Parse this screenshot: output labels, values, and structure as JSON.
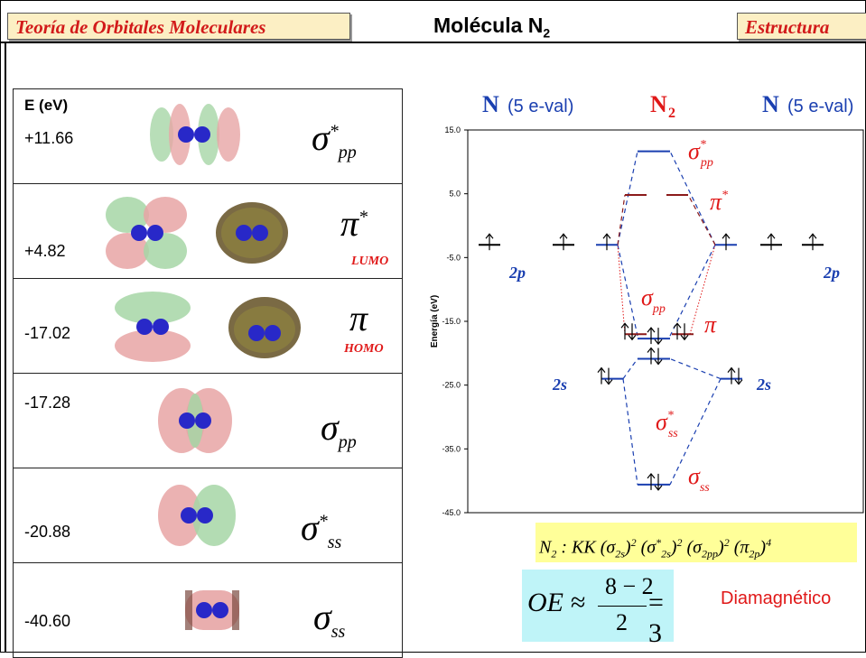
{
  "header": {
    "left_tag": "Teoría de Orbitales Moleculares",
    "right_tag": "Estructura",
    "title": "Molécula N",
    "title_sub": "2"
  },
  "table": {
    "energy_header": "E (eV)",
    "rows": [
      {
        "energy": "+11.66",
        "symbol": "σ",
        "sub": "pp",
        "sup": "*",
        "tag": ""
      },
      {
        "energy": "+4.82",
        "symbol": "π",
        "sub": "",
        "sup": "*",
        "tag": "LUMO"
      },
      {
        "energy": "-17.02",
        "symbol": "π",
        "sub": "",
        "sup": "",
        "tag": "HOMO"
      },
      {
        "energy": "-17.28",
        "symbol": "σ",
        "sub": "pp",
        "sup": "",
        "tag": ""
      },
      {
        "energy": "-20.88",
        "symbol": "σ",
        "sub": "ss",
        "sup": "*",
        "tag": ""
      },
      {
        "energy": "-40.60",
        "symbol": "σ",
        "sub": "ss",
        "sup": "",
        "tag": ""
      }
    ]
  },
  "chart_data": {
    "type": "energy-level diagram",
    "column_headers": {
      "left": {
        "atom": "N",
        "note": "(5 e-val)"
      },
      "center": {
        "atom": "N",
        "sub": "2"
      },
      "right": {
        "atom": "N",
        "note": "(5 e-val)"
      }
    },
    "ylabel": "Energía (eV)",
    "ylim": [
      -45.0,
      15.0
    ],
    "yticks": [
      "15.0",
      "5.0",
      "-5.0",
      "-15.0",
      "-25.0",
      "-35.0",
      "-45.0"
    ],
    "atomic_levels": [
      {
        "side": "left",
        "label": "2p",
        "energy": -3.0,
        "electrons": [
          "up",
          "up",
          "up"
        ]
      },
      {
        "side": "right",
        "label": "2p",
        "energy": -3.0,
        "electrons": [
          "up",
          "up",
          "up"
        ]
      },
      {
        "side": "left",
        "label": "2s",
        "energy": -24.0,
        "electrons": [
          "updown"
        ]
      },
      {
        "side": "right",
        "label": "2s",
        "energy": -24.0,
        "electrons": [
          "updown"
        ]
      }
    ],
    "molecular_levels": [
      {
        "name": "σpp*",
        "energy": 11.66,
        "electrons": []
      },
      {
        "name": "π*",
        "energy": 4.82,
        "electrons": []
      },
      {
        "name": "π",
        "energy": -17.02,
        "electrons": [
          "updown",
          "updown"
        ]
      },
      {
        "name": "σpp",
        "energy": -17.28,
        "electrons": [
          "updown"
        ]
      },
      {
        "name": "σss*",
        "energy": -20.88,
        "electrons": [
          "updown"
        ]
      },
      {
        "name": "σss",
        "energy": -40.6,
        "electrons": [
          "updown"
        ]
      }
    ],
    "level_labels": [
      {
        "text": "σ",
        "sub": "pp",
        "sup": "*"
      },
      {
        "text": "π",
        "sub": "",
        "sup": "*"
      },
      {
        "text": "σ",
        "sub": "pp",
        "sup": ""
      },
      {
        "text": "π",
        "sub": "",
        "sup": ""
      },
      {
        "text": "σ",
        "sub": "ss",
        "sup": "*"
      },
      {
        "text": "σ",
        "sub": "ss",
        "sup": ""
      }
    ],
    "side_labels": [
      "2p",
      "2p",
      "2s",
      "2s"
    ]
  },
  "formula": {
    "prefix": "N",
    "prefix_sub": "2",
    "text": " : KK",
    "terms": [
      {
        "sym": "σ",
        "sub": "2s",
        "sup": "",
        "exp": "2"
      },
      {
        "sym": "σ",
        "sub": "2s",
        "sup": "*",
        "exp": "2"
      },
      {
        "sym": "σ",
        "sub": "2pp",
        "sup": "",
        "exp": "2"
      },
      {
        "sym": "π",
        "sub": "2p",
        "sup": "",
        "exp": "4"
      }
    ]
  },
  "bond_order": {
    "lhs": "OE ≈",
    "numerator": "8 − 2",
    "denominator": "2",
    "result": "= 3"
  },
  "magnetism": "Diamagnético",
  "colors": {
    "accent_red": "#e01818",
    "blue": "#1a3fb0",
    "dark_red": "#8b1a1a",
    "tag_bg": "#fcefc4",
    "formula_bg": "#ffff99",
    "oe_bg": "#bff4f8"
  }
}
